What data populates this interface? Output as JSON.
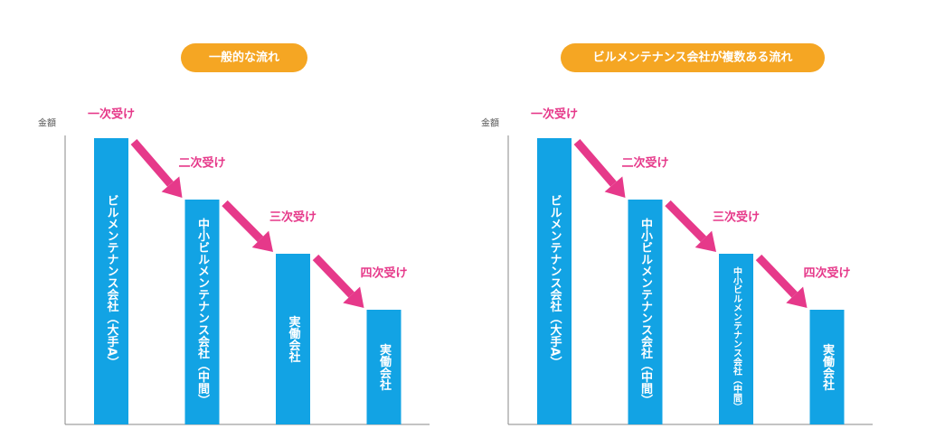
{
  "panels": [
    {
      "title": "一般的な流れ",
      "axis_label": "金額",
      "steps": [
        {
          "label": "一次受け",
          "bar_text": "ビルメンテナンス会社（大手A）"
        },
        {
          "label": "二次受け",
          "bar_text": "中小ビルメンテナンス会社（中間）"
        },
        {
          "label": "三次受け",
          "bar_text": "実働会社"
        },
        {
          "label": "四次受け",
          "bar_text": "実働会社"
        }
      ]
    },
    {
      "title": "ビルメンテナンス会社が複数ある流れ",
      "axis_label": "金額",
      "steps": [
        {
          "label": "一次受け",
          "bar_text": "ビルメンテナンス会社（大手A）"
        },
        {
          "label": "二次受け",
          "bar_text": "中小ビルメンテナンス会社（中間）"
        },
        {
          "label": "三次受け",
          "bar_text": "中小ビルメンテナンス会社（中間）"
        },
        {
          "label": "四次受け",
          "bar_text": "実働会社"
        }
      ]
    }
  ]
}
